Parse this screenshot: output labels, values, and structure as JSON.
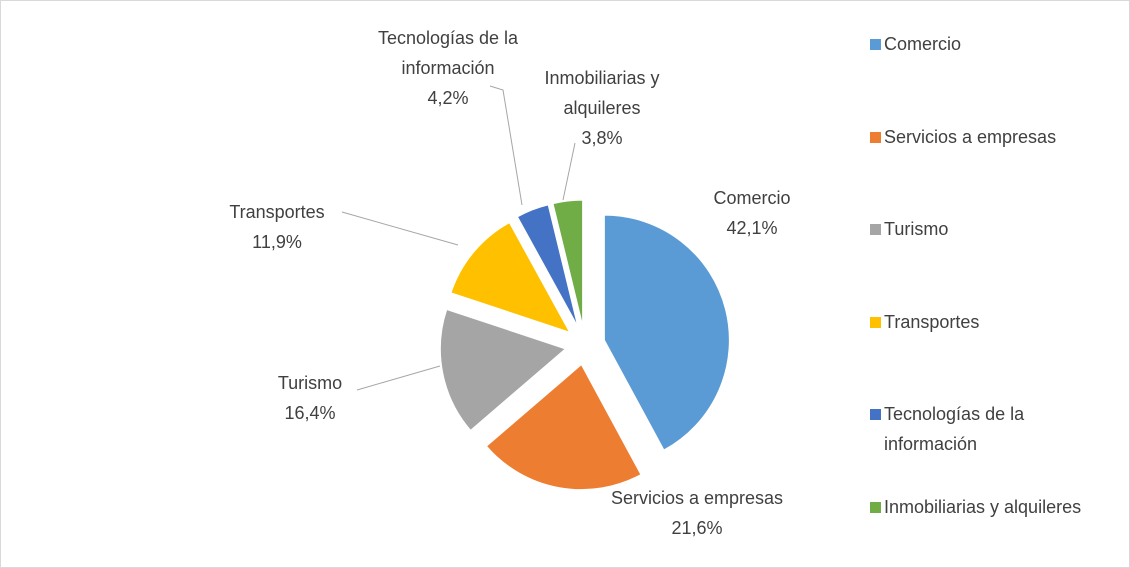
{
  "chart_data": {
    "type": "pie",
    "categories": [
      "Comercio",
      "Servicios a empresas",
      "Turismo",
      "Transportes",
      "Tecnologías de la información",
      "Inmobiliarias y alquileres"
    ],
    "values": [
      42.1,
      21.6,
      16.4,
      11.9,
      4.2,
      3.8
    ],
    "value_labels": [
      "42,1%",
      "21,6%",
      "16,4%",
      "11,9%",
      "4,2%",
      "3,8%"
    ],
    "colors": [
      "#5b9bd5",
      "#ed7d31",
      "#a5a5a5",
      "#ffc000",
      "#4472c4",
      "#70ad47"
    ],
    "legend": "right"
  }
}
